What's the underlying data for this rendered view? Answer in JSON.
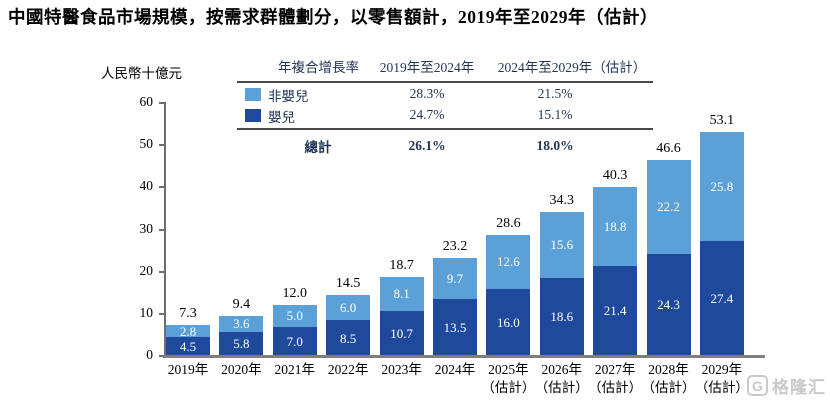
{
  "title": "中國特醫食品市場規模，按需求群體劃分，以零售額計，2019年至2029年（估計）",
  "colors": {
    "non_infant_light_blue": "#5BA1D8",
    "infant_dark_blue": "#1F4A9C",
    "axis_gray": "#6E6E6E",
    "baseline_gray": "#7F7F7F",
    "table_text_navy": "#1F3455",
    "table_rule_gray": "#4A4A4A",
    "watermark_gray": "#C9C9C9"
  },
  "cagr_table": {
    "header": {
      "col1": "年複合增長率",
      "col2": "2019年至2024年",
      "col3": "2024年至2029年（估計）"
    },
    "rows": [
      {
        "label": "非嬰兒",
        "swatch_color": "#5BA1D8",
        "cagr_2019_2024": "28.3%",
        "cagr_2024_2029": "21.5%"
      },
      {
        "label": "嬰兒",
        "swatch_color": "#1F4A9C",
        "cagr_2019_2024": "24.7%",
        "cagr_2024_2029": "15.1%"
      }
    ],
    "total": {
      "label": "總計",
      "cagr_2019_2024": "26.1%",
      "cagr_2024_2029": "18.0%"
    }
  },
  "chart_data": {
    "type": "bar",
    "stacked": true,
    "unit_label": "人民幣十億元",
    "ylim": [
      0,
      60
    ],
    "yticks": [
      0,
      10,
      20,
      30,
      40,
      50,
      60
    ],
    "grid": false,
    "categories": [
      {
        "label": "2019年",
        "sub": ""
      },
      {
        "label": "2020年",
        "sub": ""
      },
      {
        "label": "2021年",
        "sub": ""
      },
      {
        "label": "2022年",
        "sub": ""
      },
      {
        "label": "2023年",
        "sub": ""
      },
      {
        "label": "2024年",
        "sub": ""
      },
      {
        "label": "2025年",
        "sub": "（估計）"
      },
      {
        "label": "2026年",
        "sub": "（估計）"
      },
      {
        "label": "2027年",
        "sub": "（估計）"
      },
      {
        "label": "2028年",
        "sub": "（估計）"
      },
      {
        "label": "2029年",
        "sub": "（估計）"
      }
    ],
    "series": [
      {
        "name": "嬰兒",
        "position": "bottom",
        "color": "#1F4A9C",
        "values": [
          4.5,
          5.8,
          7.0,
          8.5,
          10.7,
          13.5,
          16.0,
          18.6,
          21.4,
          24.3,
          27.4
        ]
      },
      {
        "name": "非嬰兒",
        "position": "top",
        "color": "#5BA1D8",
        "values": [
          2.8,
          3.6,
          5.0,
          6.0,
          8.1,
          9.7,
          12.6,
          15.6,
          18.8,
          22.2,
          25.8
        ]
      }
    ],
    "totals": [
      7.3,
      9.4,
      12.0,
      14.5,
      18.7,
      23.2,
      28.6,
      34.3,
      40.3,
      46.6,
      53.1
    ]
  },
  "watermark": {
    "logo_letter": "G",
    "text": "格隆汇"
  }
}
